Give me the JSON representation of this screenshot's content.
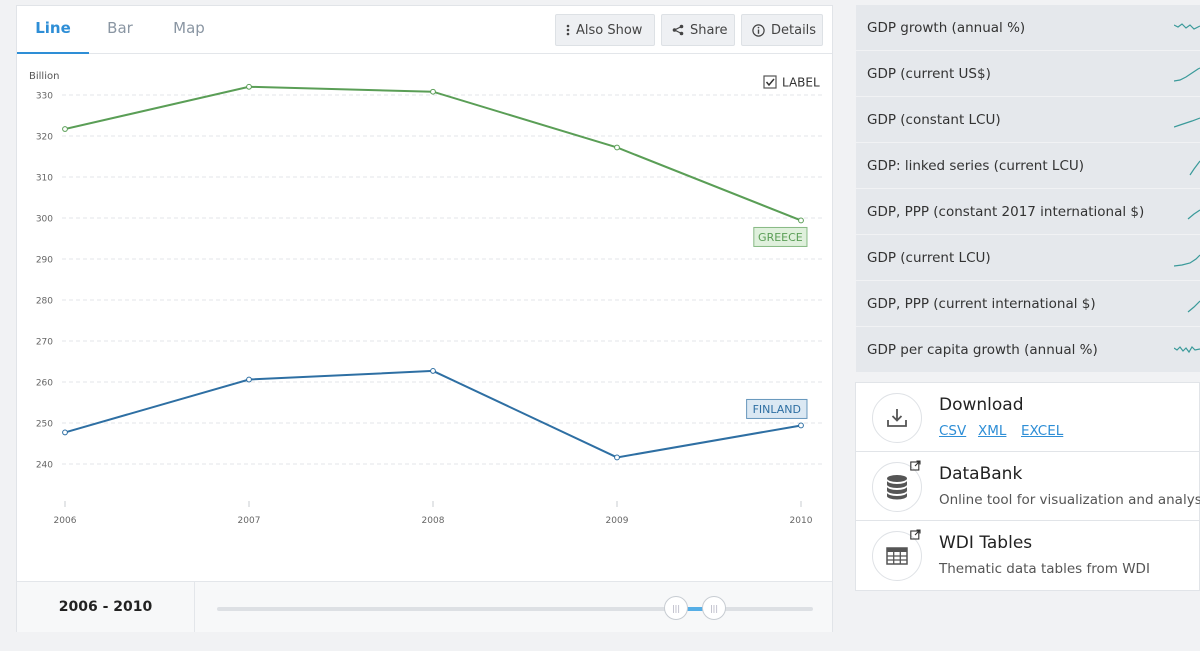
{
  "tabs": [
    {
      "label": "Line",
      "active": true
    },
    {
      "label": "Bar",
      "active": false
    },
    {
      "label": "Map",
      "active": false
    }
  ],
  "toolbar": {
    "also_show": "Also Show",
    "share": "Share",
    "details": "Details"
  },
  "chart_data": {
    "type": "line",
    "unit_label": "Billion",
    "x": [
      "2006",
      "2007",
      "2008",
      "2009",
      "2010"
    ],
    "ylim": [
      240,
      330
    ],
    "y_ticks": [
      240,
      250,
      260,
      270,
      280,
      290,
      300,
      310,
      320,
      330
    ],
    "grid": true,
    "label_toggle": {
      "text": "LABEL",
      "checked": true
    },
    "series": [
      {
        "name": "GREECE",
        "color": "#5a9e56",
        "values": [
          321.7,
          332.0,
          330.8,
          317.2,
          299.4
        ]
      },
      {
        "name": "FINLAND",
        "color": "#2e6fa3",
        "values": [
          247.7,
          260.6,
          262.7,
          241.6,
          249.4
        ]
      }
    ]
  },
  "range": {
    "label": "2006 - 2010",
    "handles": [
      "|||",
      "|||"
    ]
  },
  "indicators": [
    "GDP growth (annual %)",
    "GDP (current US$)",
    "GDP (constant LCU)",
    "GDP: linked series (current LCU)",
    "GDP, PPP (constant 2017 international $)",
    "GDP (current LCU)",
    "GDP, PPP (current international $)",
    "GDP per capita growth (annual %)"
  ],
  "download": {
    "title": "Download",
    "formats": [
      "CSV",
      "XML",
      "EXCEL"
    ]
  },
  "databank": {
    "title": "DataBank",
    "subtitle": "Online tool for visualization and analysis"
  },
  "wdi": {
    "title": "WDI Tables",
    "subtitle": "Thematic data tables from WDI"
  },
  "colors": {
    "accent": "#2e8ed6",
    "greece": "#5a9e56",
    "finland": "#2e6fa3"
  }
}
